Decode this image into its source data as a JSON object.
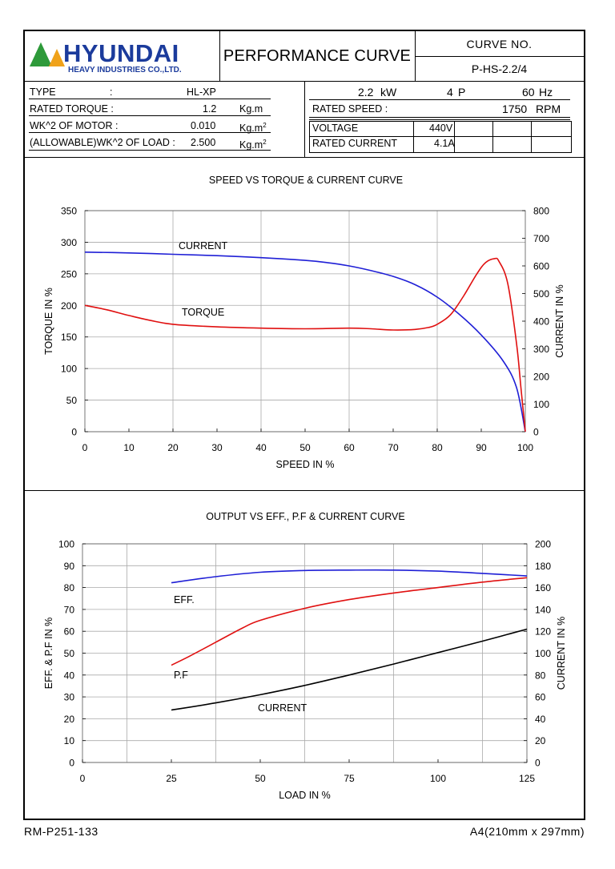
{
  "header": {
    "brand_name": "HYUNDAI",
    "brand_sub": "HEAVY INDUSTRIES CO.,LTD.",
    "title": "PERFORMANCE CURVE",
    "curve_no_label": "CURVE NO.",
    "curve_no_value": "P-HS-2.2/4"
  },
  "specs_left": {
    "type_label": "TYPE",
    "type_colon": ":",
    "type_value": "HL-XP",
    "rated_torque_label": "RATED TORQUE :",
    "rated_torque_value": "1.2",
    "rated_torque_unit": "Kg.m",
    "wk_motor_label": "WK^2 OF MOTOR :",
    "wk_motor_value": "0.010",
    "wk_motor_unit": "Kg.m",
    "wk_motor_unit_sup": "2",
    "wk_load_label": "(ALLOWABLE)WK^2 OF LOAD :",
    "wk_load_value": "2.500",
    "wk_load_unit": "Kg.m",
    "wk_load_unit_sup": "2"
  },
  "specs_right": {
    "power_value": "2.2",
    "power_unit": "kW",
    "poles_value": "4",
    "poles_unit": "P",
    "freq_value": "60",
    "freq_unit": "Hz",
    "rated_speed_label": "RATED SPEED :",
    "rated_speed_value": "1750",
    "rated_speed_unit": "RPM",
    "voltage_label": "VOLTAGE",
    "voltage_value": "440V",
    "rated_current_label": "RATED CURRENT",
    "rated_current_value": "4.1A"
  },
  "footer": {
    "left": "RM-P251-133",
    "right": "A4(210mm x 297mm)"
  },
  "chart_data": [
    {
      "type": "line",
      "title": "SPEED VS TORQUE & CURRENT CURVE",
      "xlabel": "SPEED IN %",
      "ylabel": "TORQUE IN %",
      "y2label": "CURRENT IN %",
      "xlim": [
        0,
        100
      ],
      "ylim": [
        0,
        350
      ],
      "y2lim": [
        0,
        800
      ],
      "xticks": [
        0,
        10,
        20,
        30,
        40,
        50,
        60,
        70,
        80,
        90,
        100
      ],
      "yticks": [
        0,
        50,
        100,
        150,
        200,
        250,
        300,
        350
      ],
      "y2ticks": [
        0,
        100,
        200,
        300,
        400,
        500,
        600,
        700,
        800
      ],
      "grid": true,
      "series": [
        {
          "name": "CURRENT",
          "axis": "right",
          "color": "#1f1fd6",
          "x": [
            0,
            10,
            20,
            30,
            40,
            50,
            55,
            60,
            65,
            70,
            75,
            80,
            85,
            90,
            95,
            98,
            100
          ],
          "y": [
            650,
            647,
            642,
            637,
            630,
            620,
            612,
            600,
            583,
            562,
            532,
            487,
            425,
            350,
            255,
            160,
            0
          ]
        },
        {
          "name": "TORQUE",
          "axis": "left",
          "color": "#e01010",
          "x": [
            0,
            5,
            10,
            15,
            20,
            30,
            40,
            50,
            60,
            65,
            70,
            75,
            78,
            80,
            83,
            86,
            89,
            91,
            93,
            94,
            96,
            98,
            99,
            100
          ],
          "y": [
            200,
            193,
            184,
            176,
            170,
            166,
            164,
            163,
            164,
            163,
            161,
            162,
            165,
            170,
            185,
            215,
            250,
            268,
            274,
            270,
            235,
            140,
            70,
            0
          ]
        }
      ],
      "annotations": [
        {
          "text": "CURRENT"
        },
        {
          "text": "TORQUE"
        }
      ]
    },
    {
      "type": "line",
      "title": "OUTPUT VS EFF., P.F & CURRENT CURVE",
      "xlabel": "LOAD IN %",
      "ylabel": "EFF. & P.F IN %",
      "y2label": "CURRENT IN %",
      "xlim": [
        0,
        125
      ],
      "ylim": [
        0,
        100
      ],
      "y2lim": [
        0,
        200
      ],
      "xticks": [
        0,
        25,
        50,
        75,
        100,
        125
      ],
      "yticks": [
        0,
        10,
        20,
        30,
        40,
        50,
        60,
        70,
        80,
        90,
        100
      ],
      "y2ticks": [
        0,
        20,
        40,
        60,
        80,
        100,
        120,
        140,
        160,
        180,
        200
      ],
      "grid": true,
      "series": [
        {
          "name": "EFF.",
          "axis": "left",
          "color": "#1f1fd6",
          "x": [
            25,
            37.5,
            50,
            62.5,
            75,
            87.5,
            100,
            112.5,
            125
          ],
          "y": [
            82.2,
            85,
            87,
            87.8,
            88,
            88,
            87.5,
            86.5,
            85.3
          ]
        },
        {
          "name": "P.F",
          "axis": "left",
          "color": "#e01010",
          "x": [
            25,
            30,
            37.5,
            45,
            50,
            62.5,
            75,
            87.5,
            100,
            112.5,
            125
          ],
          "y": [
            44.5,
            48.5,
            55,
            61.5,
            65,
            70.5,
            74.5,
            77.5,
            80,
            82.5,
            84.5
          ]
        },
        {
          "name": "CURRENT",
          "axis": "right",
          "color": "#000000",
          "x": [
            25,
            37.5,
            50,
            62.5,
            75,
            87.5,
            100,
            112.5,
            125
          ],
          "y": [
            48,
            54.5,
            62,
            70.5,
            80,
            90,
            100.5,
            111,
            122
          ]
        }
      ],
      "annotations": [
        {
          "text": "EFF."
        },
        {
          "text": "P.F"
        },
        {
          "text": "CURRENT"
        }
      ]
    }
  ]
}
